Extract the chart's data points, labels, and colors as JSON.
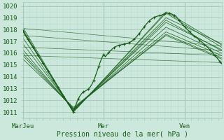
{
  "xlabel": "Pression niveau de la mer( hPa )",
  "bg_color": "#cce8dc",
  "grid_major_color": "#aaccbe",
  "grid_minor_color": "#bbddd0",
  "line_color": "#1a5c1a",
  "ylim": [
    1010.5,
    1020.3
  ],
  "yticks": [
    1011,
    1012,
    1013,
    1014,
    1015,
    1016,
    1017,
    1018,
    1019,
    1020
  ],
  "xtick_labels": [
    "MarJeu",
    "Mer",
    "Ven"
  ],
  "xtick_positions": [
    0,
    48,
    96
  ],
  "x_range": [
    0,
    118
  ]
}
